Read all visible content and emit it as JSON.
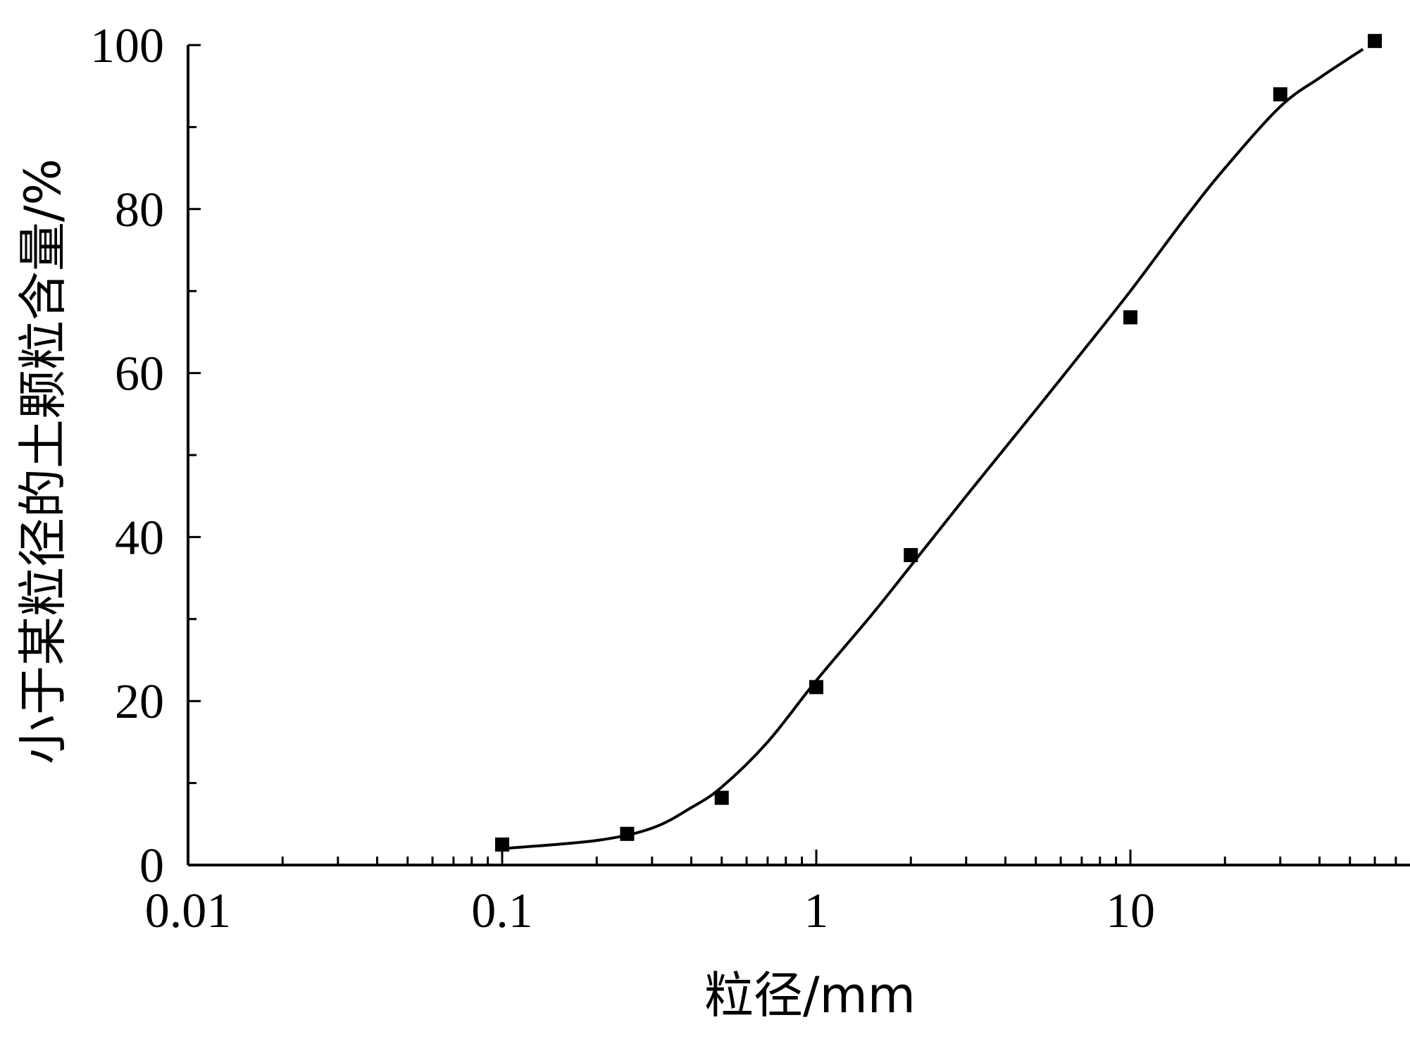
{
  "chart_data": {
    "type": "scatter",
    "xlabel": "粒径/mm",
    "ylabel": "小于某粒径的土颗粒含量/%",
    "x_scale": "log",
    "xlim": [
      0.01,
      70
    ],
    "ylim": [
      0,
      100
    ],
    "x_major_ticks": [
      0.01,
      0.1,
      1,
      10
    ],
    "x_tick_labels": [
      "0.01",
      "0.1",
      "1",
      "10"
    ],
    "y_major_ticks": [
      0,
      20,
      40,
      60,
      80,
      100
    ],
    "y_tick_labels": [
      "0",
      "20",
      "40",
      "60",
      "80",
      "100"
    ],
    "y_minor_ticks": [
      10,
      30,
      50,
      70,
      90
    ],
    "grid": false,
    "series": [
      {
        "marker": "square",
        "color": "#000000",
        "x": [
          0.1,
          0.25,
          0.5,
          1,
          2,
          10,
          30,
          60
        ],
        "y": [
          2.5,
          3.8,
          8.2,
          21.7,
          37.8,
          66.8,
          94.0,
          100.5
        ]
      }
    ],
    "fit_curve": {
      "color": "#000000",
      "x": [
        0.1,
        0.2,
        0.3,
        0.4,
        0.5,
        0.7,
        1,
        1.5,
        2,
        3,
        5,
        7,
        10,
        15,
        20,
        30,
        40,
        55
      ],
      "y": [
        2.0,
        3.0,
        4.5,
        7.0,
        9.5,
        15.0,
        22.5,
        30.5,
        36.5,
        45.0,
        55.5,
        62.5,
        70.0,
        79.0,
        85.0,
        92.5,
        96.0,
        99.5
      ]
    }
  }
}
